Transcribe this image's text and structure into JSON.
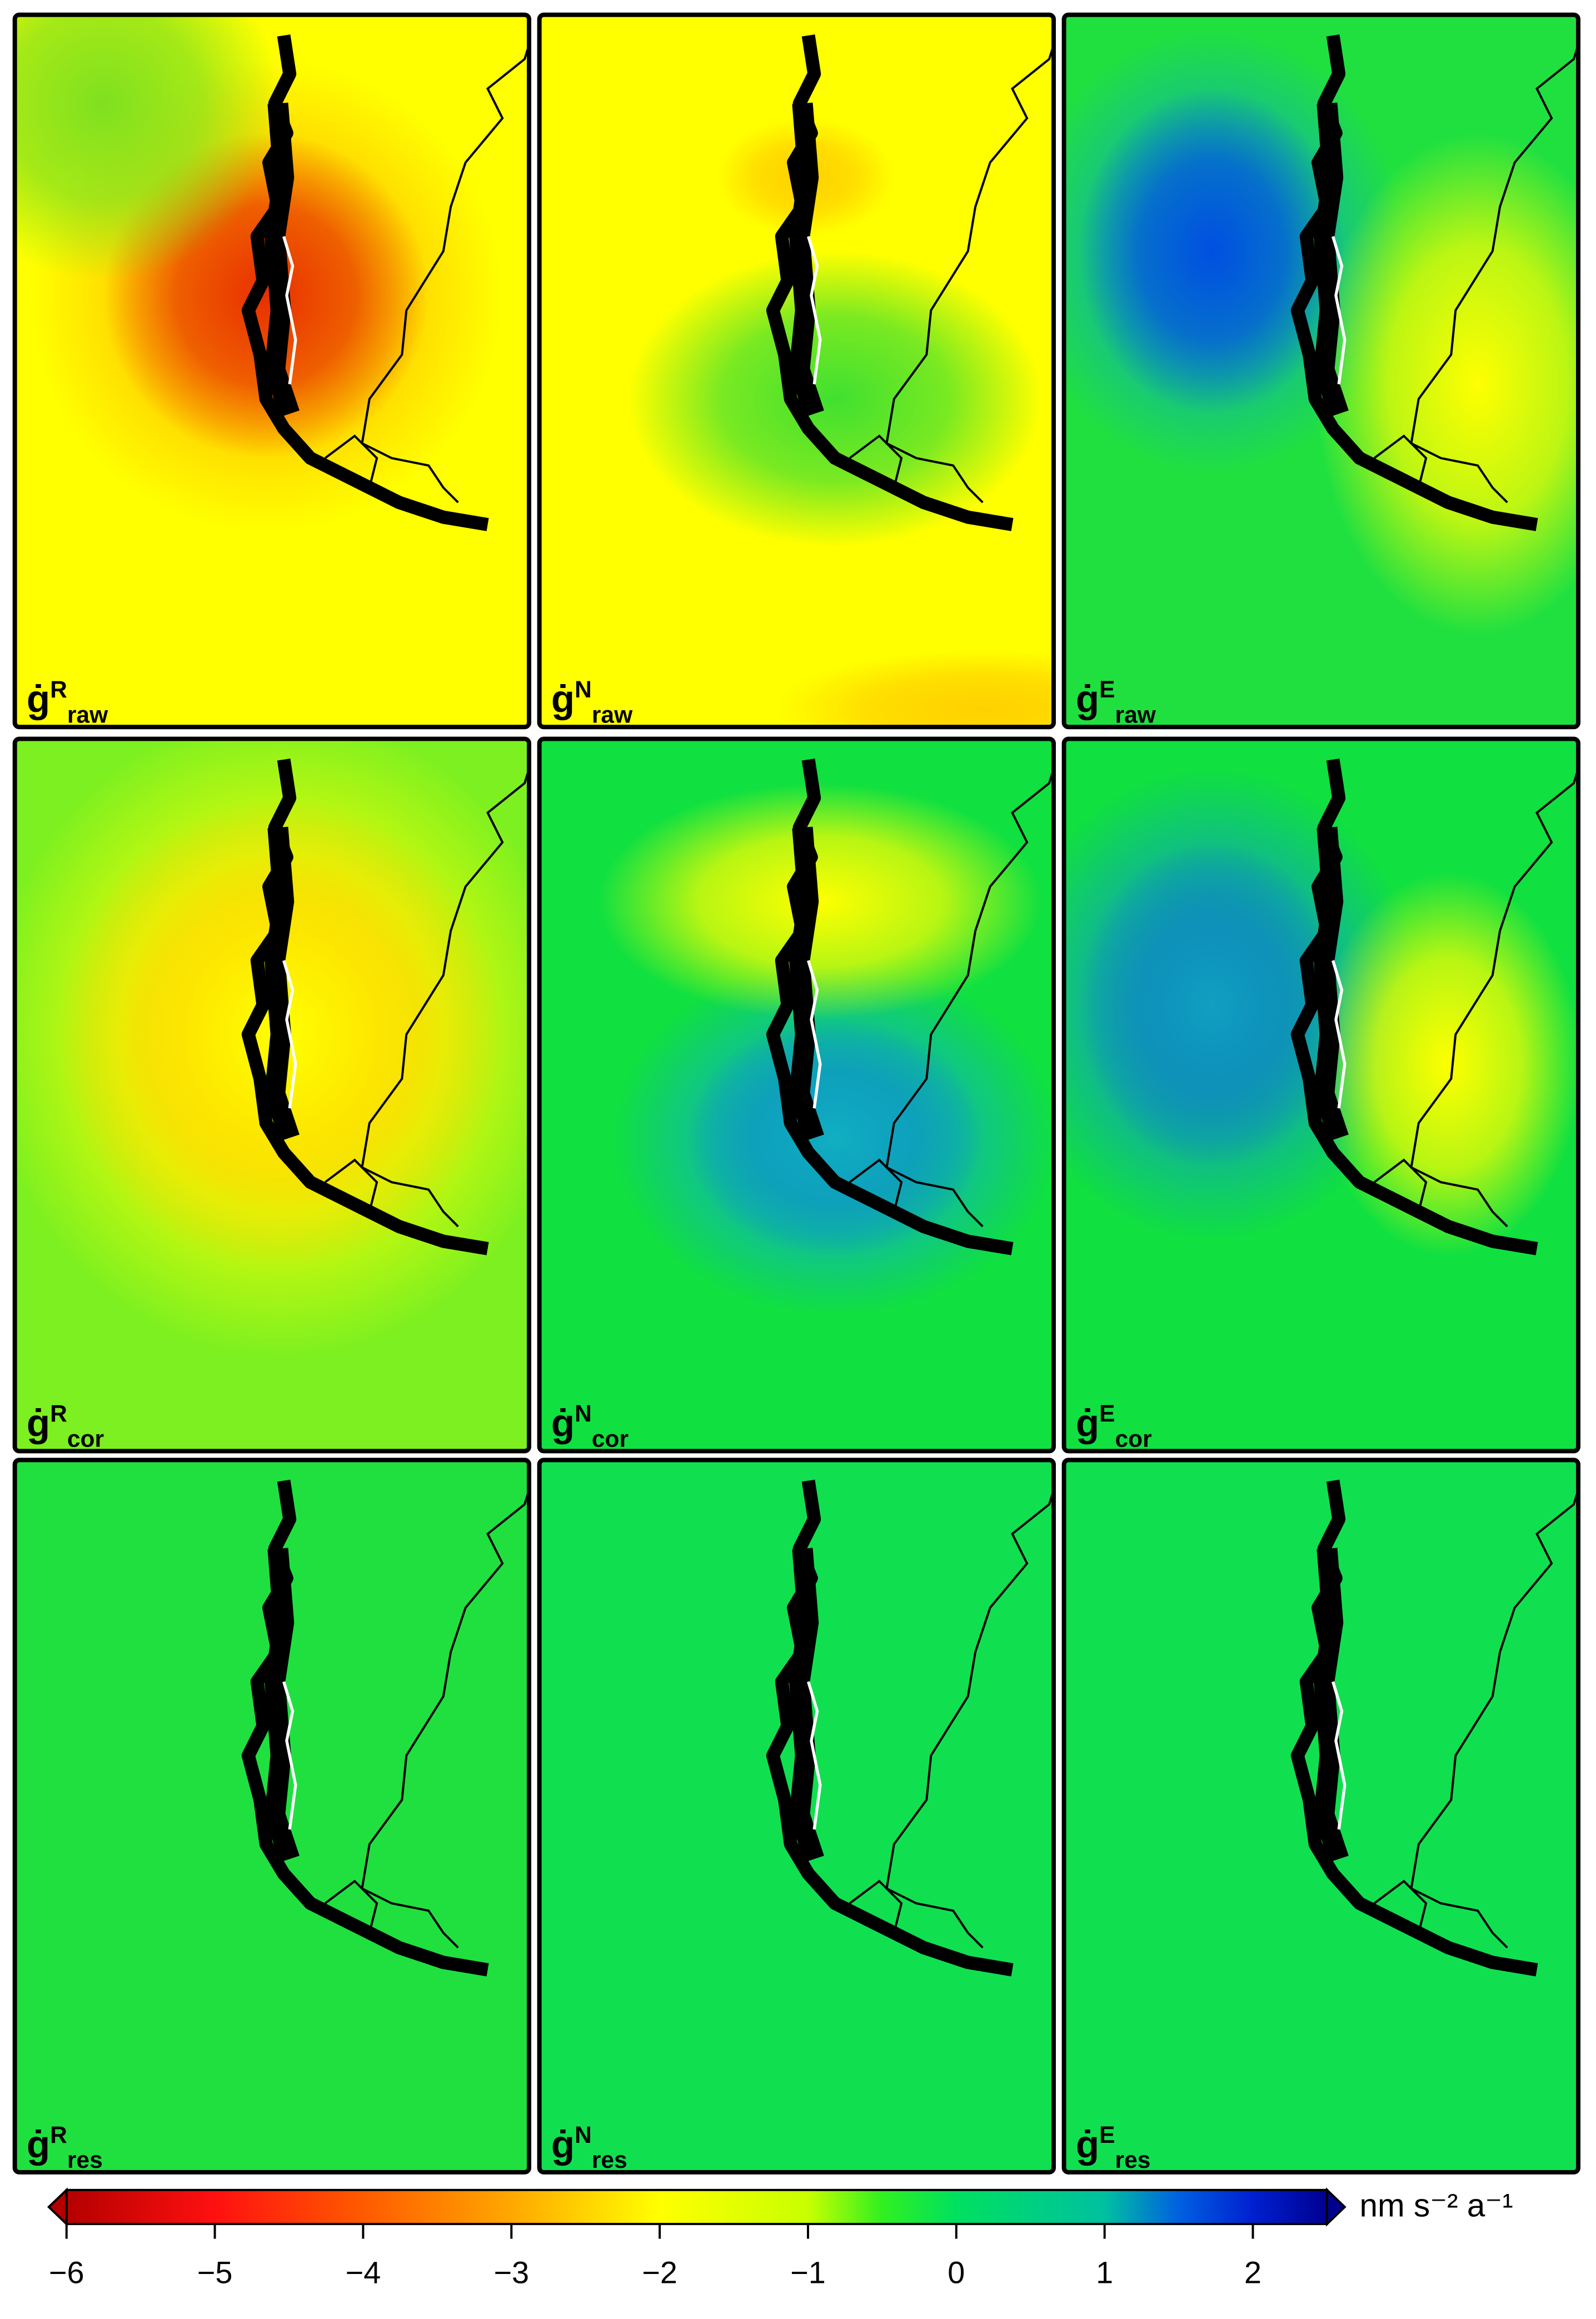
{
  "symbol": "ġ",
  "panels": [
    {
      "sup": "R",
      "sub": "raw"
    },
    {
      "sup": "N",
      "sub": "raw"
    },
    {
      "sup": "E",
      "sub": "raw"
    },
    {
      "sup": "R",
      "sub": "cor"
    },
    {
      "sup": "N",
      "sub": "cor"
    },
    {
      "sup": "E",
      "sub": "cor"
    },
    {
      "sup": "R",
      "sub": "res"
    },
    {
      "sup": "N",
      "sub": "res"
    },
    {
      "sup": "E",
      "sub": "res"
    }
  ],
  "colorbar": {
    "unit": "nm s⁻² a⁻¹",
    "lim": [
      -6,
      2.5
    ],
    "ticks": [
      {
        "value": -6,
        "label": "−6"
      },
      {
        "value": -5,
        "label": "−5"
      },
      {
        "value": -4,
        "label": "−4"
      },
      {
        "value": -3,
        "label": "−3"
      },
      {
        "value": -2,
        "label": "−2"
      },
      {
        "value": -1,
        "label": "−1"
      },
      0,
      1,
      2
    ],
    "palette": [
      {
        "value": -6,
        "color": "#b40000"
      },
      {
        "value": -5,
        "color": "#ff1010"
      },
      {
        "value": -4,
        "color": "#ff5a00"
      },
      {
        "value": -3,
        "color": "#ffa800"
      },
      {
        "value": -2,
        "color": "#ffff00"
      },
      {
        "value": -1,
        "color": "#c8ff00"
      },
      {
        "value": -0.5,
        "color": "#30f020"
      },
      {
        "value": 0,
        "color": "#00e060"
      },
      {
        "value": 1,
        "color": "#00c0a0"
      },
      {
        "value": 1.5,
        "color": "#0060e0"
      },
      {
        "value": 2,
        "color": "#0020d0"
      },
      {
        "value": 2.5,
        "color": "#000090"
      }
    ]
  }
}
